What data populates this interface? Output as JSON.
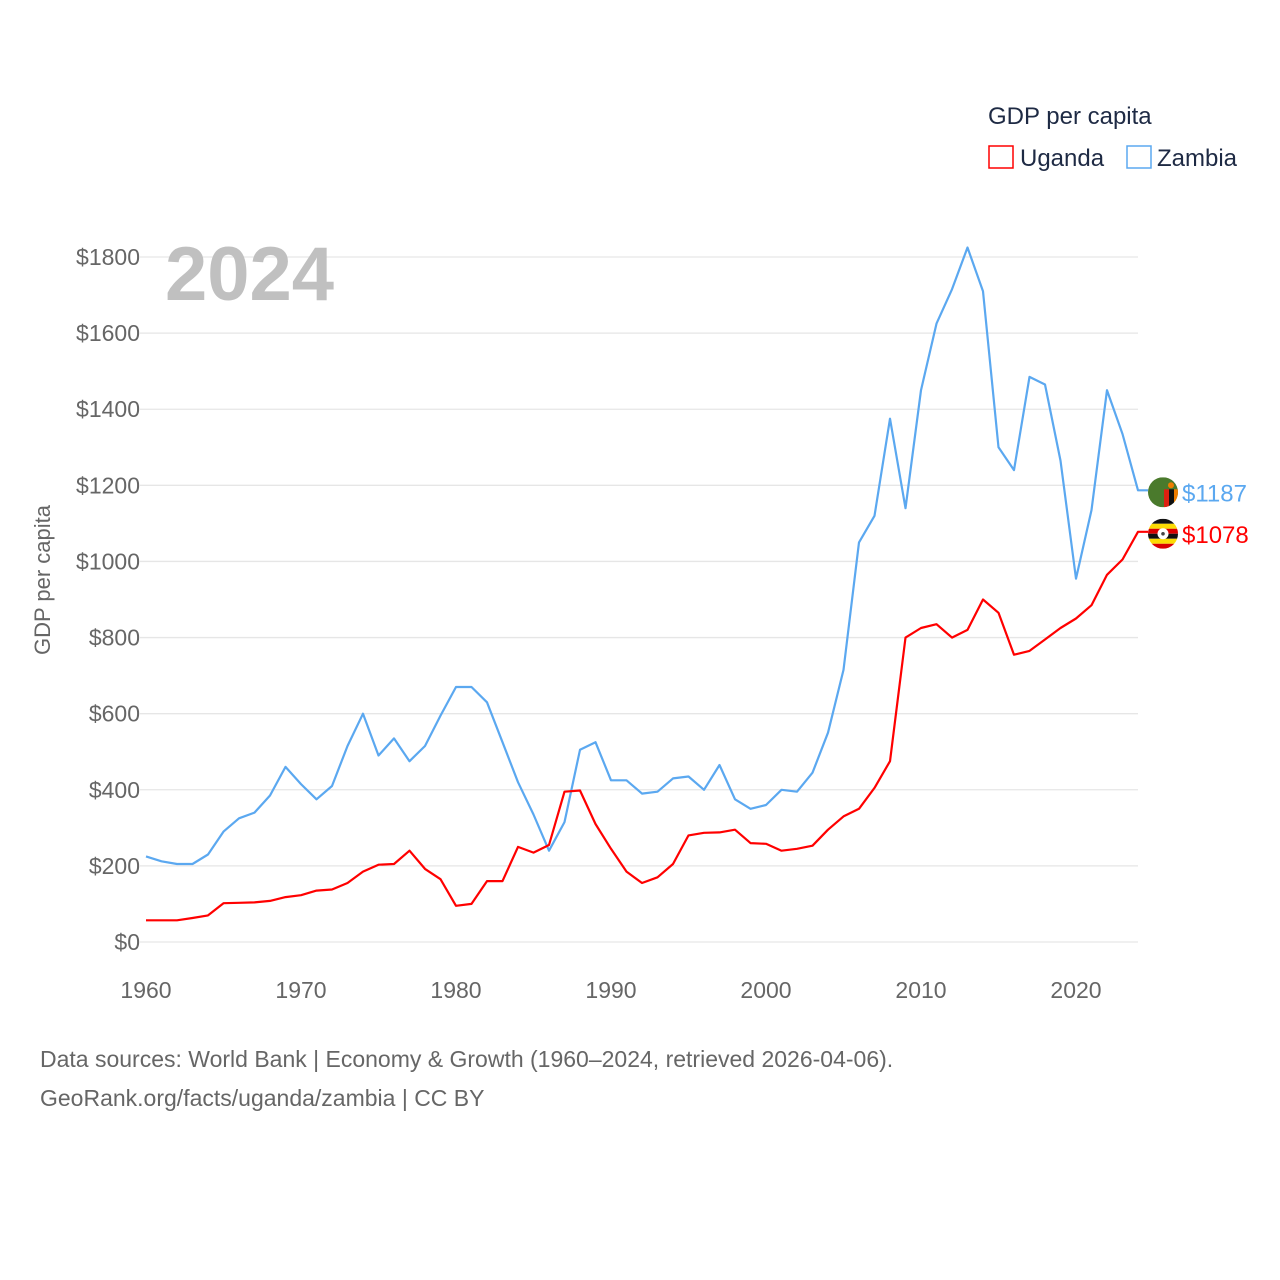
{
  "chart_data": {
    "type": "line",
    "title": "GDP per capita",
    "year_label": "2024",
    "xlabel": "",
    "ylabel": "GDP per capita",
    "xlim": [
      1960,
      2024
    ],
    "ylim": [
      0,
      1800
    ],
    "x_ticks": [
      1960,
      1970,
      1980,
      1990,
      2000,
      2010,
      2020
    ],
    "y_ticks": [
      0,
      200,
      400,
      600,
      800,
      1000,
      1200,
      1400,
      1600,
      1800
    ],
    "y_tick_labels": [
      "$0",
      "$200",
      "$400",
      "$600",
      "$800",
      "$1000",
      "$1200",
      "$1400",
      "$1600",
      "$1800"
    ],
    "grid": true,
    "legend_placement": "top-right",
    "x": [
      1960,
      1961,
      1962,
      1963,
      1964,
      1965,
      1966,
      1967,
      1968,
      1969,
      1970,
      1971,
      1972,
      1973,
      1974,
      1975,
      1976,
      1977,
      1978,
      1979,
      1980,
      1981,
      1982,
      1983,
      1984,
      1985,
      1986,
      1987,
      1988,
      1989,
      1990,
      1991,
      1992,
      1993,
      1994,
      1995,
      1996,
      1997,
      1998,
      1999,
      2000,
      2001,
      2002,
      2003,
      2004,
      2005,
      2006,
      2007,
      2008,
      2009,
      2010,
      2011,
      2012,
      2013,
      2014,
      2015,
      2016,
      2017,
      2018,
      2019,
      2020,
      2021,
      2022,
      2023,
      2024
    ],
    "series": [
      {
        "name": "Uganda",
        "color": "#ff0000",
        "end_label": "$1078",
        "flag": "uganda-flag",
        "values": [
          57,
          57,
          57,
          63,
          70,
          102,
          103,
          104,
          108,
          118,
          123,
          135,
          138,
          155,
          185,
          203,
          205,
          240,
          192,
          165,
          95,
          100,
          160,
          160,
          250,
          235,
          255,
          395,
          398,
          310,
          245,
          185,
          155,
          170,
          205,
          280,
          287,
          288,
          295,
          260,
          258,
          240,
          245,
          253,
          295,
          330,
          350,
          405,
          475,
          800,
          825,
          835,
          800,
          820,
          900,
          865,
          755,
          765,
          795,
          825,
          850,
          885,
          965,
          1005,
          1078
        ]
      },
      {
        "name": "Zambia",
        "color": "#5ba8f0",
        "end_label": "$1187",
        "flag": "zambia-flag",
        "values": [
          225,
          212,
          205,
          205,
          230,
          290,
          325,
          340,
          385,
          460,
          415,
          375,
          410,
          515,
          600,
          490,
          535,
          475,
          515,
          595,
          670,
          670,
          630,
          525,
          420,
          335,
          240,
          315,
          505,
          525,
          425,
          425,
          390,
          395,
          430,
          435,
          400,
          465,
          375,
          350,
          360,
          400,
          395,
          445,
          550,
          715,
          1050,
          1120,
          1375,
          1140,
          1450,
          1625,
          1715,
          1825,
          1710,
          1300,
          1240,
          1485,
          1465,
          1265,
          955,
          1135,
          1450,
          1335,
          1187
        ]
      }
    ]
  },
  "footer": {
    "line1": "Data sources: World Bank | Economy & Growth (1960–2024, retrieved 2026-04-06).",
    "line2": "GeoRank.org/facts/uganda/zambia | CC BY"
  }
}
